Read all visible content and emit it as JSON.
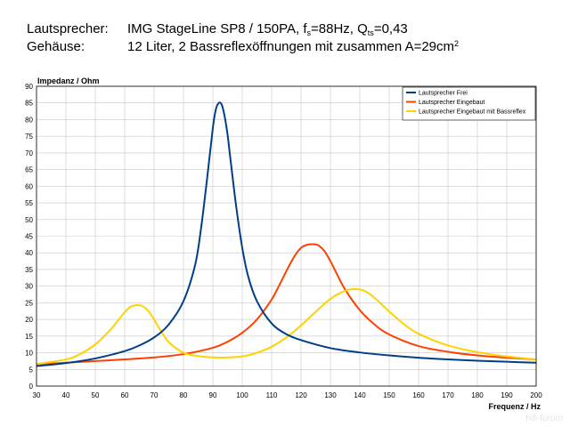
{
  "header": {
    "line1": {
      "label": "Lautsprecher:",
      "model": "IMG StageLine SP8 / 150PA, f",
      "fs_sub": "s",
      "fs_val": "=88Hz, Q",
      "qts_sub": "ts",
      "qts_val": "=0,43"
    },
    "line2": {
      "label": "Gehäuse:",
      "text": "12 Liter, 2 Bassreflexöffnungen mit zusammen A=29cm",
      "sup": "2"
    }
  },
  "watermark": "hifi-forum",
  "chart_data": {
    "type": "line",
    "xlabel": "Frequenz / Hz",
    "ylabel": "Impedanz / Ohm",
    "xlim": [
      30,
      200
    ],
    "ylim": [
      0,
      90
    ],
    "xticks": [
      "30",
      "40",
      "50",
      "60",
      "70",
      "80",
      "90",
      "100",
      "110",
      "120",
      "130",
      "140",
      "150",
      "160",
      "170",
      "180",
      "190",
      "200"
    ],
    "yticks": [
      "0",
      "5",
      "10",
      "15",
      "20",
      "25",
      "30",
      "35",
      "40",
      "45",
      "50",
      "55",
      "60",
      "65",
      "70",
      "75",
      "80",
      "85",
      "90"
    ],
    "grid": true,
    "legend_position": "top-right",
    "series": [
      {
        "name": "Lautsprecher Frei",
        "color": "#003f87",
        "x": [
          30,
          40,
          50,
          60,
          65,
          70,
          75,
          80,
          84,
          86,
          88,
          90,
          91,
          92,
          93,
          94,
          95,
          96,
          98,
          100,
          102,
          105,
          110,
          115,
          120,
          130,
          140,
          150,
          160,
          170,
          180,
          190,
          200
        ],
        "y": [
          6.0,
          6.9,
          8.3,
          10.5,
          12.2,
          14.6,
          18.5,
          25.5,
          36.5,
          47.5,
          62.0,
          77.5,
          83.0,
          85.0,
          84.5,
          81.0,
          75.5,
          68.0,
          53.5,
          41.5,
          33.0,
          25.5,
          18.8,
          15.6,
          13.8,
          11.4,
          10.1,
          9.2,
          8.5,
          8.0,
          7.6,
          7.3,
          7.0
        ]
      },
      {
        "name": "Lautsprecher Eingebaut",
        "color": "#ff4000",
        "x": [
          30,
          40,
          50,
          60,
          70,
          80,
          90,
          95,
          100,
          105,
          110,
          113,
          116,
          118,
          120,
          122,
          124,
          125,
          126,
          128,
          130,
          132,
          135,
          140,
          145,
          150,
          160,
          170,
          180,
          190,
          200
        ],
        "y": [
          6.5,
          7.0,
          7.5,
          8.0,
          8.6,
          9.6,
          11.5,
          13.3,
          16.0,
          20.0,
          26.0,
          31.0,
          36.2,
          39.3,
          41.5,
          42.4,
          42.6,
          42.5,
          42.2,
          40.5,
          37.5,
          34.0,
          29.0,
          22.8,
          18.5,
          15.5,
          12.0,
          10.3,
          9.2,
          8.5,
          8.0
        ]
      },
      {
        "name": "Lautsprecher Eingebaut mit Bassreflex",
        "color": "#ffd200",
        "x": [
          30,
          40,
          45,
          50,
          55,
          58,
          60,
          62,
          64,
          65,
          66,
          68,
          70,
          72,
          75,
          80,
          85,
          90,
          95,
          100,
          105,
          110,
          115,
          120,
          125,
          130,
          135,
          138,
          140,
          142,
          145,
          150,
          155,
          160,
          170,
          180,
          190,
          200
        ],
        "y": [
          6.6,
          8.0,
          9.7,
          12.5,
          16.8,
          20.0,
          22.2,
          23.8,
          24.3,
          24.3,
          24.0,
          22.6,
          20.0,
          17.0,
          13.2,
          10.0,
          9.0,
          8.6,
          8.6,
          8.9,
          10.0,
          11.8,
          14.6,
          18.2,
          22.3,
          26.2,
          28.6,
          29.1,
          29.0,
          28.4,
          26.5,
          22.4,
          18.6,
          15.7,
          12.2,
          10.2,
          8.9,
          8.0
        ]
      }
    ]
  }
}
